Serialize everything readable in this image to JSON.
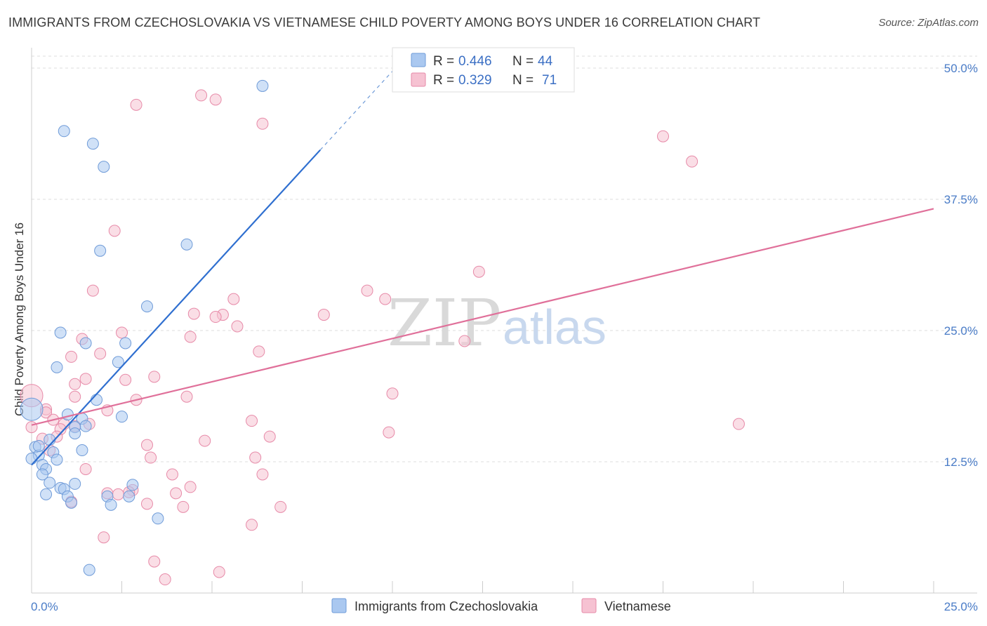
{
  "title": "IMMIGRANTS FROM CZECHOSLOVAKIA VS VIETNAMESE CHILD POVERTY AMONG BOYS UNDER 16 CORRELATION CHART",
  "source": "Source: ZipAtlas.com",
  "watermark": {
    "zip": "ZIP",
    "atlas": "atlas"
  },
  "colors": {
    "blue_fill": "#aac8f0",
    "blue_stroke": "#6f9bd8",
    "blue_line": "#2f6fd0",
    "pink_fill": "#f6c2d2",
    "pink_stroke": "#e78aa8",
    "pink_line": "#e0709a",
    "grid": "#dddddd",
    "tick_text": "#4a7cc7"
  },
  "legend": {
    "rows": [
      {
        "r_label": "R =",
        "r_value": "0.446",
        "n_label": "N =",
        "n_value": "44"
      },
      {
        "r_label": "R =",
        "r_value": "0.329",
        "n_label": "N =",
        "n_value": "71"
      }
    ]
  },
  "bottom_legend": [
    "Immigrants from Czechoslovakia",
    "Vietnamese"
  ],
  "chart_data": {
    "type": "scatter",
    "xlabel": "",
    "ylabel": "Child Poverty Among Boys Under 16",
    "xlim": [
      0,
      25
    ],
    "ylim": [
      0,
      52
    ],
    "x_tick_labels": [
      "0.0%",
      "25.0%"
    ],
    "y_ticks": [
      12.5,
      25.0,
      37.5,
      50.0
    ],
    "y_tick_labels": [
      "12.5%",
      "25.0%",
      "37.5%",
      "50.0%"
    ],
    "series": [
      {
        "name": "Immigrants from Czechoslovakia",
        "color": "blue",
        "R": 0.446,
        "N": 44,
        "trend": {
          "x0": 0.0,
          "y0": 12.2,
          "x1": 8.0,
          "y1": 42.2,
          "dash_x1": 10.0,
          "dash_y1": 49.7
        },
        "points": [
          [
            6.4,
            48.3
          ],
          [
            0.9,
            44.0
          ],
          [
            1.7,
            42.8
          ],
          [
            2.0,
            40.6
          ],
          [
            4.3,
            33.2
          ],
          [
            1.9,
            32.6
          ],
          [
            3.2,
            27.3
          ],
          [
            0.8,
            24.8
          ],
          [
            1.5,
            23.8
          ],
          [
            2.6,
            23.8
          ],
          [
            2.4,
            22.0
          ],
          [
            0.7,
            21.5
          ],
          [
            0.0,
            17.5
          ],
          [
            1.8,
            18.4
          ],
          [
            1.0,
            17.0
          ],
          [
            2.5,
            16.8
          ],
          [
            1.4,
            16.6
          ],
          [
            1.5,
            15.9
          ],
          [
            1.2,
            15.8
          ],
          [
            1.2,
            15.2
          ],
          [
            0.5,
            14.6
          ],
          [
            1.4,
            13.6
          ],
          [
            0.1,
            13.9
          ],
          [
            0.2,
            13.1
          ],
          [
            0.6,
            13.4
          ],
          [
            0.7,
            12.7
          ],
          [
            0.3,
            12.2
          ],
          [
            0.4,
            11.8
          ],
          [
            0.3,
            11.3
          ],
          [
            0.5,
            10.5
          ],
          [
            2.8,
            10.3
          ],
          [
            1.2,
            10.4
          ],
          [
            0.8,
            10.0
          ],
          [
            0.9,
            9.9
          ],
          [
            0.4,
            9.4
          ],
          [
            1.0,
            9.2
          ],
          [
            2.1,
            9.2
          ],
          [
            2.7,
            9.2
          ],
          [
            1.1,
            8.6
          ],
          [
            2.2,
            8.4
          ],
          [
            3.5,
            7.1
          ],
          [
            1.6,
            2.2
          ],
          [
            0.0,
            12.8
          ],
          [
            0.2,
            14.0
          ]
        ]
      },
      {
        "name": "Vietnamese",
        "color": "pink",
        "R": 0.329,
        "N": 71,
        "trend": {
          "x0": 0.0,
          "y0": 16.0,
          "x1": 25.0,
          "y1": 36.6
        },
        "points": [
          [
            4.7,
            47.4
          ],
          [
            5.1,
            47.0
          ],
          [
            2.9,
            46.5
          ],
          [
            6.4,
            44.7
          ],
          [
            17.5,
            43.5
          ],
          [
            18.3,
            41.1
          ],
          [
            2.3,
            34.5
          ],
          [
            12.4,
            30.6
          ],
          [
            1.7,
            28.8
          ],
          [
            9.3,
            28.8
          ],
          [
            5.6,
            28.0
          ],
          [
            9.8,
            28.0
          ],
          [
            4.5,
            26.6
          ],
          [
            5.3,
            26.5
          ],
          [
            5.1,
            26.3
          ],
          [
            8.1,
            26.5
          ],
          [
            5.7,
            25.4
          ],
          [
            2.5,
            24.8
          ],
          [
            1.4,
            24.2
          ],
          [
            4.4,
            24.4
          ],
          [
            12.0,
            24.0
          ],
          [
            6.3,
            23.0
          ],
          [
            1.9,
            22.8
          ],
          [
            1.1,
            22.5
          ],
          [
            3.4,
            20.6
          ],
          [
            1.5,
            20.4
          ],
          [
            2.6,
            20.3
          ],
          [
            1.2,
            19.9
          ],
          [
            10.0,
            19.0
          ],
          [
            0.0,
            18.8
          ],
          [
            1.2,
            18.7
          ],
          [
            4.3,
            18.7
          ],
          [
            2.9,
            18.4
          ],
          [
            2.1,
            17.4
          ],
          [
            0.4,
            17.5
          ],
          [
            6.1,
            16.4
          ],
          [
            19.6,
            16.1
          ],
          [
            1.6,
            16.1
          ],
          [
            0.9,
            16.1
          ],
          [
            1.2,
            15.9
          ],
          [
            0.8,
            15.6
          ],
          [
            0.0,
            15.8
          ],
          [
            9.9,
            15.3
          ],
          [
            6.6,
            14.9
          ],
          [
            0.3,
            14.7
          ],
          [
            0.7,
            14.9
          ],
          [
            4.8,
            14.5
          ],
          [
            3.2,
            14.1
          ],
          [
            0.5,
            13.6
          ],
          [
            3.3,
            12.9
          ],
          [
            6.2,
            12.9
          ],
          [
            1.5,
            11.8
          ],
          [
            3.9,
            11.3
          ],
          [
            6.4,
            11.3
          ],
          [
            4.4,
            10.1
          ],
          [
            2.8,
            9.8
          ],
          [
            2.1,
            9.5
          ],
          [
            2.7,
            9.6
          ],
          [
            4.0,
            9.5
          ],
          [
            1.1,
            8.7
          ],
          [
            3.2,
            8.5
          ],
          [
            4.2,
            8.2
          ],
          [
            6.9,
            8.2
          ],
          [
            6.1,
            6.5
          ],
          [
            2.0,
            5.3
          ],
          [
            3.4,
            3.0
          ],
          [
            3.7,
            1.3
          ],
          [
            5.2,
            2.0
          ],
          [
            2.4,
            9.4
          ],
          [
            0.4,
            17.2
          ],
          [
            0.6,
            16.5
          ]
        ]
      }
    ]
  }
}
